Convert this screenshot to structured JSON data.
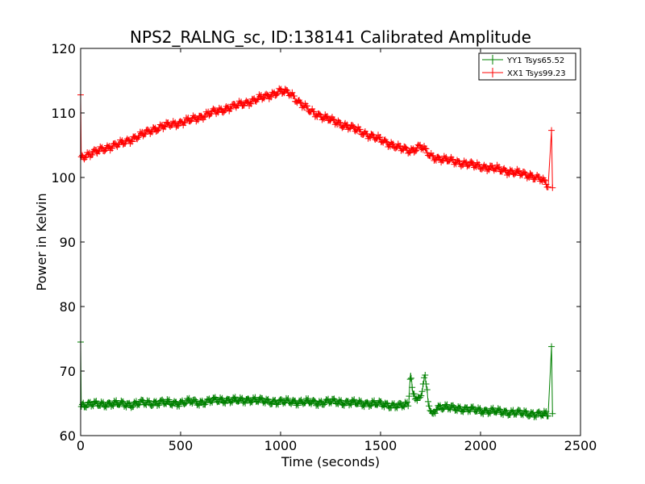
{
  "chart_data": {
    "type": "line",
    "title": "NPS2_RALNG_sc, ID:138141 Calibrated Amplitude",
    "xlabel": "Time (seconds)",
    "ylabel": "Power in Kelvin",
    "xlim": [
      0,
      2500
    ],
    "ylim": [
      60,
      120
    ],
    "xticks": [
      0,
      500,
      1000,
      1500,
      2000,
      2500
    ],
    "yticks": [
      60,
      70,
      80,
      90,
      100,
      110,
      120
    ],
    "grid": false,
    "legend_position": "top-right",
    "marker": "+",
    "series": [
      {
        "name": "YY1 Tsys65.52",
        "color": "#008000",
        "x": [
          0,
          3,
          8,
          50,
          100,
          150,
          200,
          250,
          300,
          350,
          400,
          450,
          500,
          550,
          600,
          650,
          700,
          750,
          800,
          850,
          900,
          950,
          1000,
          1050,
          1100,
          1150,
          1200,
          1250,
          1300,
          1350,
          1400,
          1450,
          1500,
          1550,
          1600,
          1640,
          1650,
          1660,
          1680,
          1700,
          1720,
          1740,
          1760,
          1780,
          1800,
          1850,
          1900,
          1950,
          2000,
          2050,
          2100,
          2150,
          2200,
          2250,
          2300,
          2340,
          2355,
          2360
        ],
        "y": [
          74.5,
          64.5,
          64.8,
          64.9,
          64.8,
          65.0,
          64.9,
          64.8,
          65.1,
          65.0,
          65.2,
          65.0,
          65.1,
          65.3,
          65.1,
          65.4,
          65.5,
          65.5,
          65.4,
          65.6,
          65.4,
          65.3,
          65.2,
          65.3,
          65.2,
          65.2,
          65.1,
          65.3,
          65.2,
          65.1,
          65.0,
          65.0,
          64.9,
          64.7,
          64.6,
          64.8,
          70.2,
          66.5,
          66.0,
          65.5,
          69.5,
          65.0,
          63.0,
          64.5,
          64.4,
          64.3,
          64.2,
          64.0,
          63.9,
          63.8,
          63.7,
          63.6,
          63.5,
          63.4,
          63.3,
          63.2,
          73.8,
          63.4
        ]
      },
      {
        "name": "XX1 Tsys99.23",
        "color": "#ff0000",
        "x": [
          0,
          3,
          8,
          50,
          100,
          150,
          200,
          250,
          300,
          350,
          400,
          450,
          500,
          550,
          600,
          650,
          700,
          750,
          800,
          850,
          900,
          950,
          1000,
          1050,
          1100,
          1150,
          1200,
          1250,
          1300,
          1350,
          1400,
          1450,
          1500,
          1550,
          1600,
          1650,
          1700,
          1750,
          1800,
          1850,
          1900,
          1950,
          2000,
          2050,
          2100,
          2150,
          2200,
          2250,
          2300,
          2340,
          2355,
          2360
        ],
        "y": [
          112.8,
          103.2,
          103.3,
          103.6,
          104.3,
          104.8,
          105.2,
          105.9,
          106.5,
          107.3,
          107.8,
          108.2,
          108.5,
          108.9,
          109.4,
          110.0,
          110.4,
          110.9,
          111.3,
          111.8,
          112.3,
          112.8,
          113.4,
          113.0,
          111.5,
          110.2,
          109.6,
          108.9,
          108.3,
          107.8,
          107.1,
          106.5,
          105.8,
          105.2,
          104.5,
          104.1,
          104.9,
          103.3,
          102.9,
          102.6,
          102.3,
          102.0,
          101.7,
          101.5,
          101.2,
          100.9,
          100.6,
          100.3,
          99.8,
          98.6,
          107.3,
          98.4
        ]
      }
    ]
  }
}
